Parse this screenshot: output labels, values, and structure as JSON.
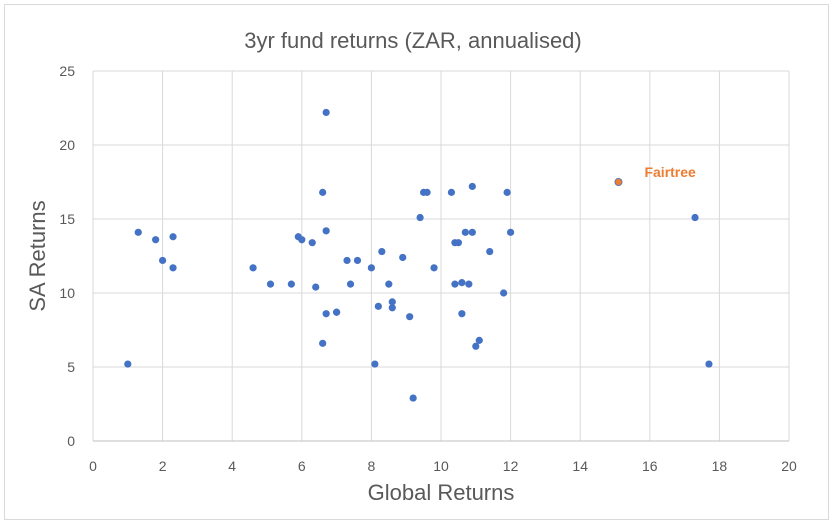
{
  "colors": {
    "series": "#4472c4",
    "highlight": "#ed7d31",
    "grid": "#d9d9d9",
    "axis": "#bfbfbf",
    "text": "#595959"
  },
  "chart_data": {
    "type": "scatter",
    "title": "3yr fund returns (ZAR, annualised)",
    "xlabel": "Global Returns",
    "ylabel": "SA Returns",
    "xlim": [
      0,
      20
    ],
    "ylim": [
      0,
      25
    ],
    "xticks": [
      0,
      2,
      4,
      6,
      8,
      10,
      12,
      14,
      16,
      18,
      20
    ],
    "yticks": [
      0,
      5,
      10,
      15,
      20,
      25
    ],
    "grid": true,
    "legend": "none",
    "series": [
      {
        "points": [
          [
            1.0,
            5.2
          ],
          [
            1.3,
            14.1
          ],
          [
            1.8,
            13.6
          ],
          [
            2.0,
            12.2
          ],
          [
            2.3,
            11.7
          ],
          [
            2.3,
            13.8
          ],
          [
            4.6,
            11.7
          ],
          [
            5.1,
            10.6
          ],
          [
            5.7,
            10.6
          ],
          [
            5.9,
            13.8
          ],
          [
            6.0,
            13.6
          ],
          [
            6.3,
            13.4
          ],
          [
            6.4,
            10.4
          ],
          [
            6.6,
            16.8
          ],
          [
            6.6,
            6.6
          ],
          [
            6.7,
            22.2
          ],
          [
            6.7,
            8.6
          ],
          [
            6.7,
            14.2
          ],
          [
            7.0,
            8.7
          ],
          [
            7.0,
            8.7
          ],
          [
            7.3,
            12.2
          ],
          [
            7.4,
            10.6
          ],
          [
            7.6,
            12.2
          ],
          [
            8.0,
            11.7
          ],
          [
            8.1,
            5.2
          ],
          [
            8.2,
            9.1
          ],
          [
            8.3,
            12.8
          ],
          [
            8.5,
            10.6
          ],
          [
            8.6,
            9.4
          ],
          [
            8.6,
            9.0
          ],
          [
            8.9,
            12.4
          ],
          [
            9.1,
            8.4
          ],
          [
            9.2,
            2.9
          ],
          [
            9.4,
            15.1
          ],
          [
            9.5,
            16.8
          ],
          [
            9.6,
            16.8
          ],
          [
            9.8,
            11.7
          ],
          [
            10.3,
            16.8
          ],
          [
            10.4,
            13.4
          ],
          [
            10.4,
            10.6
          ],
          [
            10.5,
            13.4
          ],
          [
            10.6,
            10.7
          ],
          [
            10.6,
            8.6
          ],
          [
            10.7,
            14.1
          ],
          [
            10.8,
            10.6
          ],
          [
            10.9,
            14.1
          ],
          [
            10.9,
            17.2
          ],
          [
            11.0,
            6.4
          ],
          [
            11.1,
            6.8
          ],
          [
            11.4,
            12.8
          ],
          [
            11.8,
            10.0
          ],
          [
            11.9,
            16.8
          ],
          [
            12.0,
            14.1
          ],
          [
            17.3,
            15.1
          ],
          [
            17.7,
            5.2
          ]
        ]
      }
    ],
    "highlight": {
      "label": "Fairtree",
      "x": 15.1,
      "y": 17.5
    }
  }
}
